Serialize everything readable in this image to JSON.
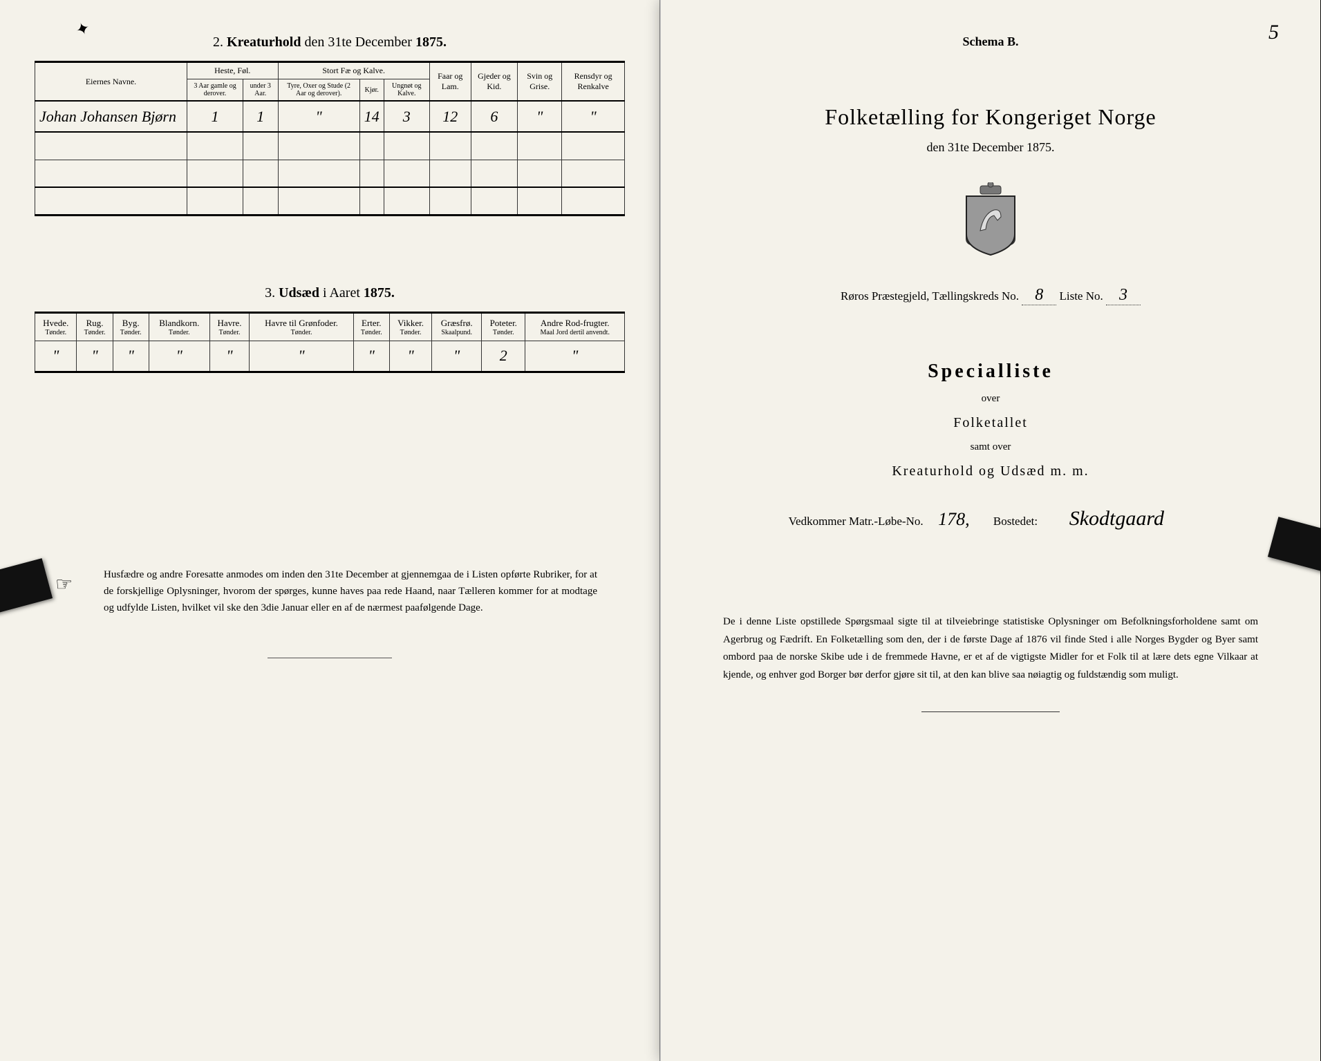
{
  "left": {
    "section2_title_prefix": "2.",
    "section2_title_bold": "Kreaturhold",
    "section2_title_suffix": "den 31te December",
    "section2_year": "1875.",
    "table2": {
      "col_owner": "Eiernes Navne.",
      "grp_horses": "Heste, Føl.",
      "grp_cattle": "Stort Fæ og Kalve.",
      "col_h1": "3 Aar gamle og derover.",
      "col_h2": "under 3 Aar.",
      "col_c1": "Tyre, Oxer og Stude (2 Aar og derover).",
      "col_c2": "Kjør.",
      "col_c3": "Ungnøt og Kalve.",
      "col_sheep": "Faar og Lam.",
      "col_goat": "Gjeder og Kid.",
      "col_pig": "Svin og Grise.",
      "col_ren": "Rensdyr og Renkalve",
      "row1": {
        "owner": "Johan Johansen Bjørn",
        "h1": "1",
        "h2": "1",
        "c1": "\"",
        "c2": "14",
        "c3": "3",
        "sheep": "12",
        "goat": "6",
        "pig": "\"",
        "ren": "\""
      }
    },
    "section3_title_prefix": "3.",
    "section3_title_bold": "Udsæd",
    "section3_title_suffix": "i Aaret",
    "section3_year": "1875.",
    "table3": {
      "cols": [
        {
          "h": "Hvede.",
          "s": "Tønder."
        },
        {
          "h": "Rug.",
          "s": "Tønder."
        },
        {
          "h": "Byg.",
          "s": "Tønder."
        },
        {
          "h": "Blandkorn.",
          "s": "Tønder."
        },
        {
          "h": "Havre.",
          "s": "Tønder."
        },
        {
          "h": "Havre til Grønfoder.",
          "s": "Tønder."
        },
        {
          "h": "Erter.",
          "s": "Tønder."
        },
        {
          "h": "Vikker.",
          "s": "Tønder."
        },
        {
          "h": "Græsfrø.",
          "s": "Skaalpund."
        },
        {
          "h": "Poteter.",
          "s": "Tønder."
        },
        {
          "h": "Andre Rod-frugter.",
          "s": "Maal Jord dertil anvendt."
        }
      ],
      "row": [
        "\"",
        "\"",
        "\"",
        "\"",
        "\"",
        "\"",
        "\"",
        "\"",
        "\"",
        "2",
        "\""
      ]
    },
    "footer": "Husfædre og andre Foresatte anmodes om inden den 31te December at gjennemgaa de i Listen opførte Rubriker, for at de forskjellige Oplysninger, hvorom der spørges, kunne haves paa rede Haand, naar Tælleren kommer for at modtage og udfylde Listen, hvilket vil ske den 3die Januar eller en af de nærmest paafølgende Dage."
  },
  "right": {
    "page_num": "5",
    "schema": "Schema B.",
    "main_title": "Folketælling for Kongeriget Norge",
    "sub_date": "den 31te December 1875.",
    "district_prefix": "Røros Præstegjeld, Tællingskreds No.",
    "district_no": "8",
    "liste_label": "Liste No.",
    "liste_no": "3",
    "special": "Specialliste",
    "over1": "over",
    "folketallet": "Folketallet",
    "over2": "samt over",
    "kretur": "Kreaturhold og Udsæd m. m.",
    "matr_label": "Vedkommer Matr.-Løbe-No.",
    "matr_no": "178,",
    "bostedet_label": "Bostedet:",
    "bostedet": "Skodtgaard",
    "footer": "De i denne Liste opstillede Spørgsmaal sigte til at tilveiebringe statistiske Oplysninger om Befolkningsforholdene samt om Agerbrug og Fædrift. En Folketælling som den, der i de første Dage af 1876 vil finde Sted i alle Norges Bygder og Byer samt ombord paa de norske Skibe ude i de fremmede Havne, er et af de vigtigste Midler for et Folk til at lære dets egne Vilkaar at kjende, og enhver god Borger bør derfor gjøre sit til, at den kan blive saa nøiagtig og fuldstændig som muligt."
  }
}
